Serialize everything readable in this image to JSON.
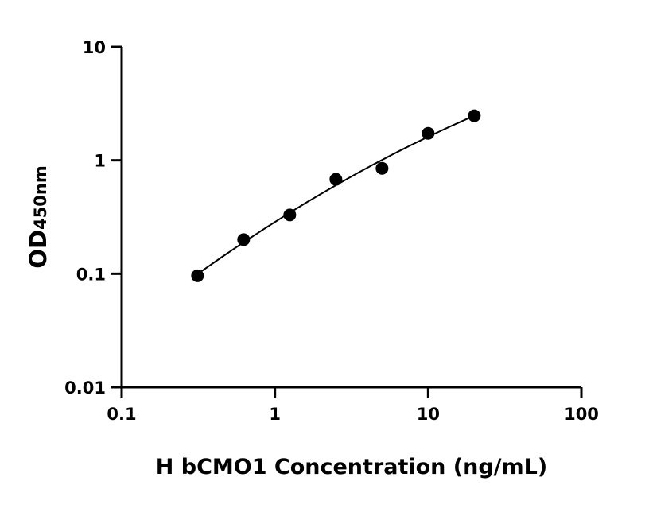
{
  "chart_data": {
    "type": "scatter",
    "title": "",
    "xlabel": "H bCMO1 Concentration (ng/mL)",
    "ylabel_main": "OD",
    "ylabel_sub": "450nm",
    "x_scale": "log",
    "y_scale": "log",
    "xlim": [
      0.1,
      100
    ],
    "ylim": [
      0.01,
      10
    ],
    "x_ticks": [
      "0.1",
      "1",
      "10",
      "100"
    ],
    "x_tick_values": [
      0.1,
      1,
      10,
      100
    ],
    "y_ticks": [
      "0.01",
      "0.1",
      "1",
      "10"
    ],
    "y_tick_values": [
      0.01,
      0.1,
      1,
      10
    ],
    "grid": false,
    "points": [
      {
        "x": 0.3125,
        "y": 0.096
      },
      {
        "x": 0.625,
        "y": 0.2
      },
      {
        "x": 1.25,
        "y": 0.33
      },
      {
        "x": 2.5,
        "y": 0.68
      },
      {
        "x": 5,
        "y": 0.85
      },
      {
        "x": 10,
        "y": 1.73
      },
      {
        "x": 20,
        "y": 2.47
      }
    ],
    "fit_curve": true,
    "color": "#000000"
  }
}
